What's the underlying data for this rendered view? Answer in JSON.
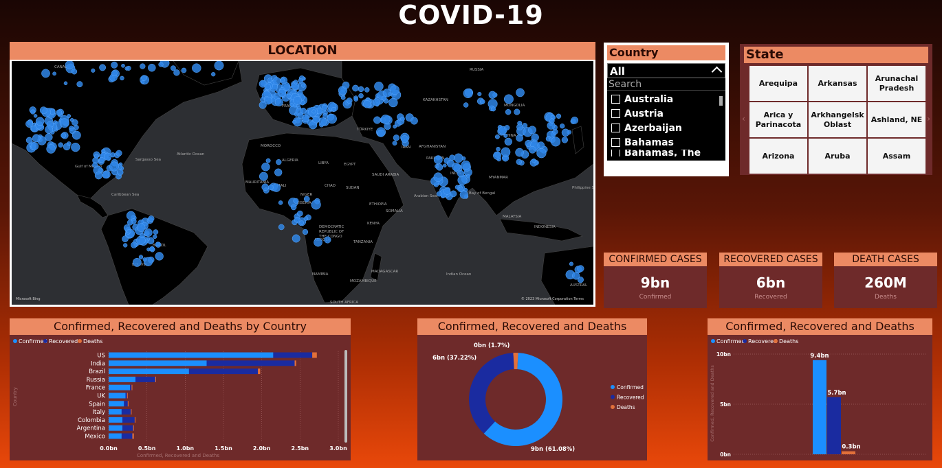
{
  "title": "COVID-19",
  "map": {
    "heading": "LOCATION",
    "credit": "Microsoft Bing",
    "copyright": "© 2023 Microsoft Corporation  Terms",
    "labels": [
      {
        "t": "CANADA",
        "x": 62,
        "y": 10
      },
      {
        "t": "Atlantic Ocean",
        "x": 240,
        "y": 137
      },
      {
        "t": "BRAZIL",
        "x": 205,
        "y": 270
      },
      {
        "t": "BOLIVIA",
        "x": 175,
        "y": 298
      },
      {
        "t": "ALGERIA",
        "x": 393,
        "y": 146
      },
      {
        "t": "LIBYA",
        "x": 446,
        "y": 150
      },
      {
        "t": "EGYPT",
        "x": 483,
        "y": 152
      },
      {
        "t": "NIGER",
        "x": 420,
        "y": 196
      },
      {
        "t": "SUDAN",
        "x": 486,
        "y": 186
      },
      {
        "t": "MALI",
        "x": 386,
        "y": 183
      },
      {
        "t": "NIGERIA",
        "x": 413,
        "y": 208
      },
      {
        "t": "CHAD",
        "x": 455,
        "y": 183
      },
      {
        "t": "MAURITANIA",
        "x": 340,
        "y": 178
      },
      {
        "t": "ANGOLA",
        "x": 440,
        "y": 262
      },
      {
        "t": "NAMIBIA",
        "x": 437,
        "y": 312
      },
      {
        "t": "TANZANIA",
        "x": 497,
        "y": 265
      },
      {
        "t": "SOUTH AFRICA",
        "x": 463,
        "y": 353
      },
      {
        "t": "MOZAMBIQUE",
        "x": 492,
        "y": 322
      },
      {
        "t": "MADAGASCAR",
        "x": 523,
        "y": 308
      },
      {
        "t": "DEMOCRATIC",
        "x": 447,
        "y": 243
      },
      {
        "t": "REPUBLIC OF",
        "x": 447,
        "y": 250
      },
      {
        "t": "THE CONGO",
        "x": 447,
        "y": 257
      },
      {
        "t": "SAUDI ARABIA",
        "x": 524,
        "y": 167
      },
      {
        "t": "IRAN",
        "x": 567,
        "y": 127
      },
      {
        "t": "AFGHANISTAN",
        "x": 592,
        "y": 126
      },
      {
        "t": "PAKISTAN",
        "x": 603,
        "y": 143
      },
      {
        "t": "INDIA",
        "x": 638,
        "y": 165
      },
      {
        "t": "KAZAKHSTAN",
        "x": 598,
        "y": 58
      },
      {
        "t": "MONGOLIA",
        "x": 716,
        "y": 66
      },
      {
        "t": "CHINA",
        "x": 716,
        "y": 110
      },
      {
        "t": "MYANMAR",
        "x": 694,
        "y": 171
      },
      {
        "t": "MALAYSIA",
        "x": 714,
        "y": 228
      },
      {
        "t": "INDONESIA",
        "x": 760,
        "y": 243
      },
      {
        "t": "RUSSIA",
        "x": 666,
        "y": 14
      },
      {
        "t": "TÜRKIYE",
        "x": 502,
        "y": 101
      },
      {
        "t": "FRANCE",
        "x": 393,
        "y": 67
      },
      {
        "t": "Indian Ocean",
        "x": 632,
        "y": 312
      },
      {
        "t": "Arabian Sea",
        "x": 585,
        "y": 198
      },
      {
        "t": "Bay of Bengal",
        "x": 665,
        "y": 194
      },
      {
        "t": "Philippine Sea",
        "x": 815,
        "y": 186
      },
      {
        "t": "AUSTRAL",
        "x": 812,
        "y": 328
      },
      {
        "t": "Sargasso Sea",
        "x": 180,
        "y": 145
      },
      {
        "t": "Gulf of Mexico",
        "x": 92,
        "y": 155
      },
      {
        "t": "Caribbean Sea",
        "x": 145,
        "y": 196
      },
      {
        "t": "MOROCCO",
        "x": 362,
        "y": 125
      },
      {
        "t": "ETHIOPIA",
        "x": 520,
        "y": 210
      },
      {
        "t": "SOMALIA",
        "x": 544,
        "y": 220
      },
      {
        "t": "KENYA",
        "x": 517,
        "y": 238
      }
    ]
  },
  "country_slicer": {
    "heading": "Country",
    "selected": "All",
    "search_placeholder": "Search",
    "items": [
      "Australia",
      "Austria",
      "Azerbaijan",
      "Bahamas",
      "Bahamas, The"
    ]
  },
  "state_slicer": {
    "heading": "State",
    "tiles": [
      "Arequipa",
      "Arkansas",
      "Arunachal Pradesh",
      "Arica y Parinacota",
      "Arkhangelsk Oblast",
      "Ashland, NE",
      "Arizona",
      "Aruba",
      "Assam"
    ]
  },
  "kpis": {
    "confirmed": {
      "heading": "CONFIRMED CASES",
      "value": "9bn",
      "sub": "Confirmed"
    },
    "recovered": {
      "heading": "RECOVERED CASES",
      "value": "6bn",
      "sub": "Recovered"
    },
    "deaths": {
      "heading": "DEATH CASES",
      "value": "260M",
      "sub": "Deaths"
    }
  },
  "colors": {
    "confirmed": "#1b8fff",
    "recovered": "#1a2ba0",
    "deaths": "#e2703a",
    "panel": "#6e2a2a",
    "header": "#ec8a63"
  },
  "chart_data": [
    {
      "type": "bar",
      "orientation": "horizontal-stacked",
      "title": "Confirmed, Recovered and Deaths by Country",
      "xlabel": "Confirmed, Recovered and Deaths",
      "ylabel": "Country",
      "legend": [
        "Confirmed",
        "Recovered",
        "Deaths"
      ],
      "legend_position": "top-left",
      "categories": [
        "US",
        "India",
        "Brazil",
        "Russia",
        "France",
        "UK",
        "Spain",
        "Italy",
        "Colombia",
        "Argentina",
        "Mexico"
      ],
      "series": [
        {
          "name": "Confirmed",
          "values": [
            2.15,
            1.28,
            1.05,
            0.35,
            0.28,
            0.22,
            0.2,
            0.17,
            0.18,
            0.18,
            0.17
          ]
        },
        {
          "name": "Recovered",
          "values": [
            0.51,
            1.15,
            0.9,
            0.26,
            0.02,
            0.02,
            0.05,
            0.12,
            0.16,
            0.14,
            0.14
          ]
        },
        {
          "name": "Deaths",
          "values": [
            0.06,
            0.02,
            0.03,
            0.01,
            0.01,
            0.01,
            0.01,
            0.01,
            0.01,
            0.01,
            0.02
          ]
        }
      ],
      "xticks": [
        "0.0bn",
        "0.5bn",
        "1.0bn",
        "1.5bn",
        "2.0bn",
        "2.5bn",
        "3.0bn"
      ],
      "xlim": [
        0,
        3.0
      ],
      "grid": true
    },
    {
      "type": "pie",
      "variant": "donut",
      "title": "Confirmed, Recovered and Deaths",
      "legend": [
        "Confirmed",
        "Recovered",
        "Deaths"
      ],
      "legend_position": "right",
      "slices": [
        {
          "name": "Confirmed",
          "percent": 61.08,
          "label": "9bn (61.08%)"
        },
        {
          "name": "Recovered",
          "percent": 37.22,
          "label": "6bn (37.22%)"
        },
        {
          "name": "Deaths",
          "percent": 1.7,
          "label": "0bn (1.7%)"
        }
      ]
    },
    {
      "type": "bar",
      "title": "Confirmed, Recovered and Deaths",
      "ylabel": "Confirmed, Recovered and Deaths",
      "legend": [
        "Confirmed",
        "Recovered",
        "Deaths"
      ],
      "legend_position": "top-left",
      "categories": [
        "Confirmed",
        "Recovered",
        "Deaths"
      ],
      "values": [
        9.4,
        5.7,
        0.3
      ],
      "data_labels": [
        "9.4bn",
        "5.7bn",
        "0.3bn"
      ],
      "yticks": [
        "0bn",
        "5bn",
        "10bn"
      ],
      "ylim": [
        0,
        10
      ]
    }
  ]
}
